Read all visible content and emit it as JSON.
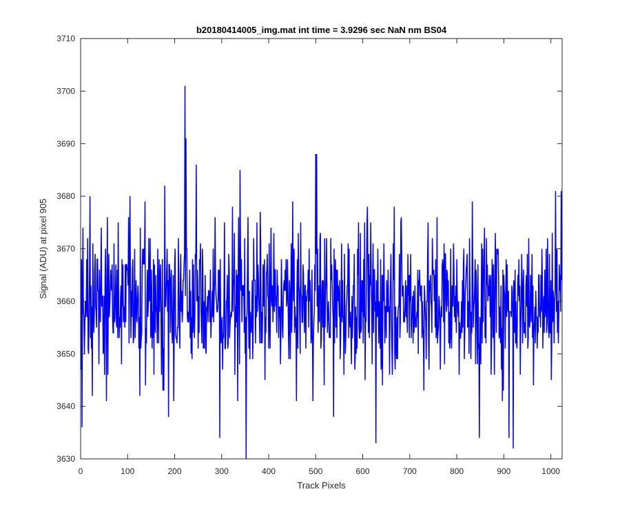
{
  "chart_data": {
    "type": "line",
    "title": "b20180414005_img.mat int time = 3.9296 sec  NaN nm BS04",
    "xlabel": "Track Pixels",
    "ylabel": "Signal (ADU) at pixel 905",
    "xlim": [
      0,
      1024
    ],
    "ylim": [
      3630,
      3710
    ],
    "xticks": [
      0,
      100,
      200,
      300,
      400,
      500,
      600,
      700,
      800,
      900,
      1000
    ],
    "yticks": [
      3630,
      3640,
      3650,
      3660,
      3670,
      3680,
      3690,
      3700,
      3710
    ],
    "xtick_labels": [
      "0",
      "100",
      "200",
      "300",
      "400",
      "500",
      "600",
      "700",
      "800",
      "900",
      "1000"
    ],
    "ytick_labels": [
      "3630",
      "3640",
      "3650",
      "3660",
      "3670",
      "3680",
      "3690",
      "3700",
      "3710"
    ],
    "grid": false,
    "box": true,
    "series": [
      {
        "color": "#0000ff",
        "x_start": 1,
        "x_step": 1,
        "points": 1024,
        "mean": 3660,
        "spread": 7,
        "notable_points": [
          {
            "x": 3,
            "y": 3636
          },
          {
            "x": 20,
            "y": 3680
          },
          {
            "x": 55,
            "y": 3641
          },
          {
            "x": 105,
            "y": 3680
          },
          {
            "x": 179,
            "y": 3682
          },
          {
            "x": 187,
            "y": 3638
          },
          {
            "x": 222,
            "y": 3701
          },
          {
            "x": 224,
            "y": 3691
          },
          {
            "x": 246,
            "y": 3686
          },
          {
            "x": 296,
            "y": 3634
          },
          {
            "x": 339,
            "y": 3685
          },
          {
            "x": 352,
            "y": 3630
          },
          {
            "x": 500,
            "y": 3688
          },
          {
            "x": 502,
            "y": 3688
          },
          {
            "x": 538,
            "y": 3638
          },
          {
            "x": 628,
            "y": 3633
          },
          {
            "x": 667,
            "y": 3678
          },
          {
            "x": 848,
            "y": 3634
          },
          {
            "x": 911,
            "y": 3634
          },
          {
            "x": 920,
            "y": 3632
          },
          {
            "x": 1010,
            "y": 3681
          },
          {
            "x": 1022,
            "y": 3681
          }
        ]
      }
    ]
  }
}
